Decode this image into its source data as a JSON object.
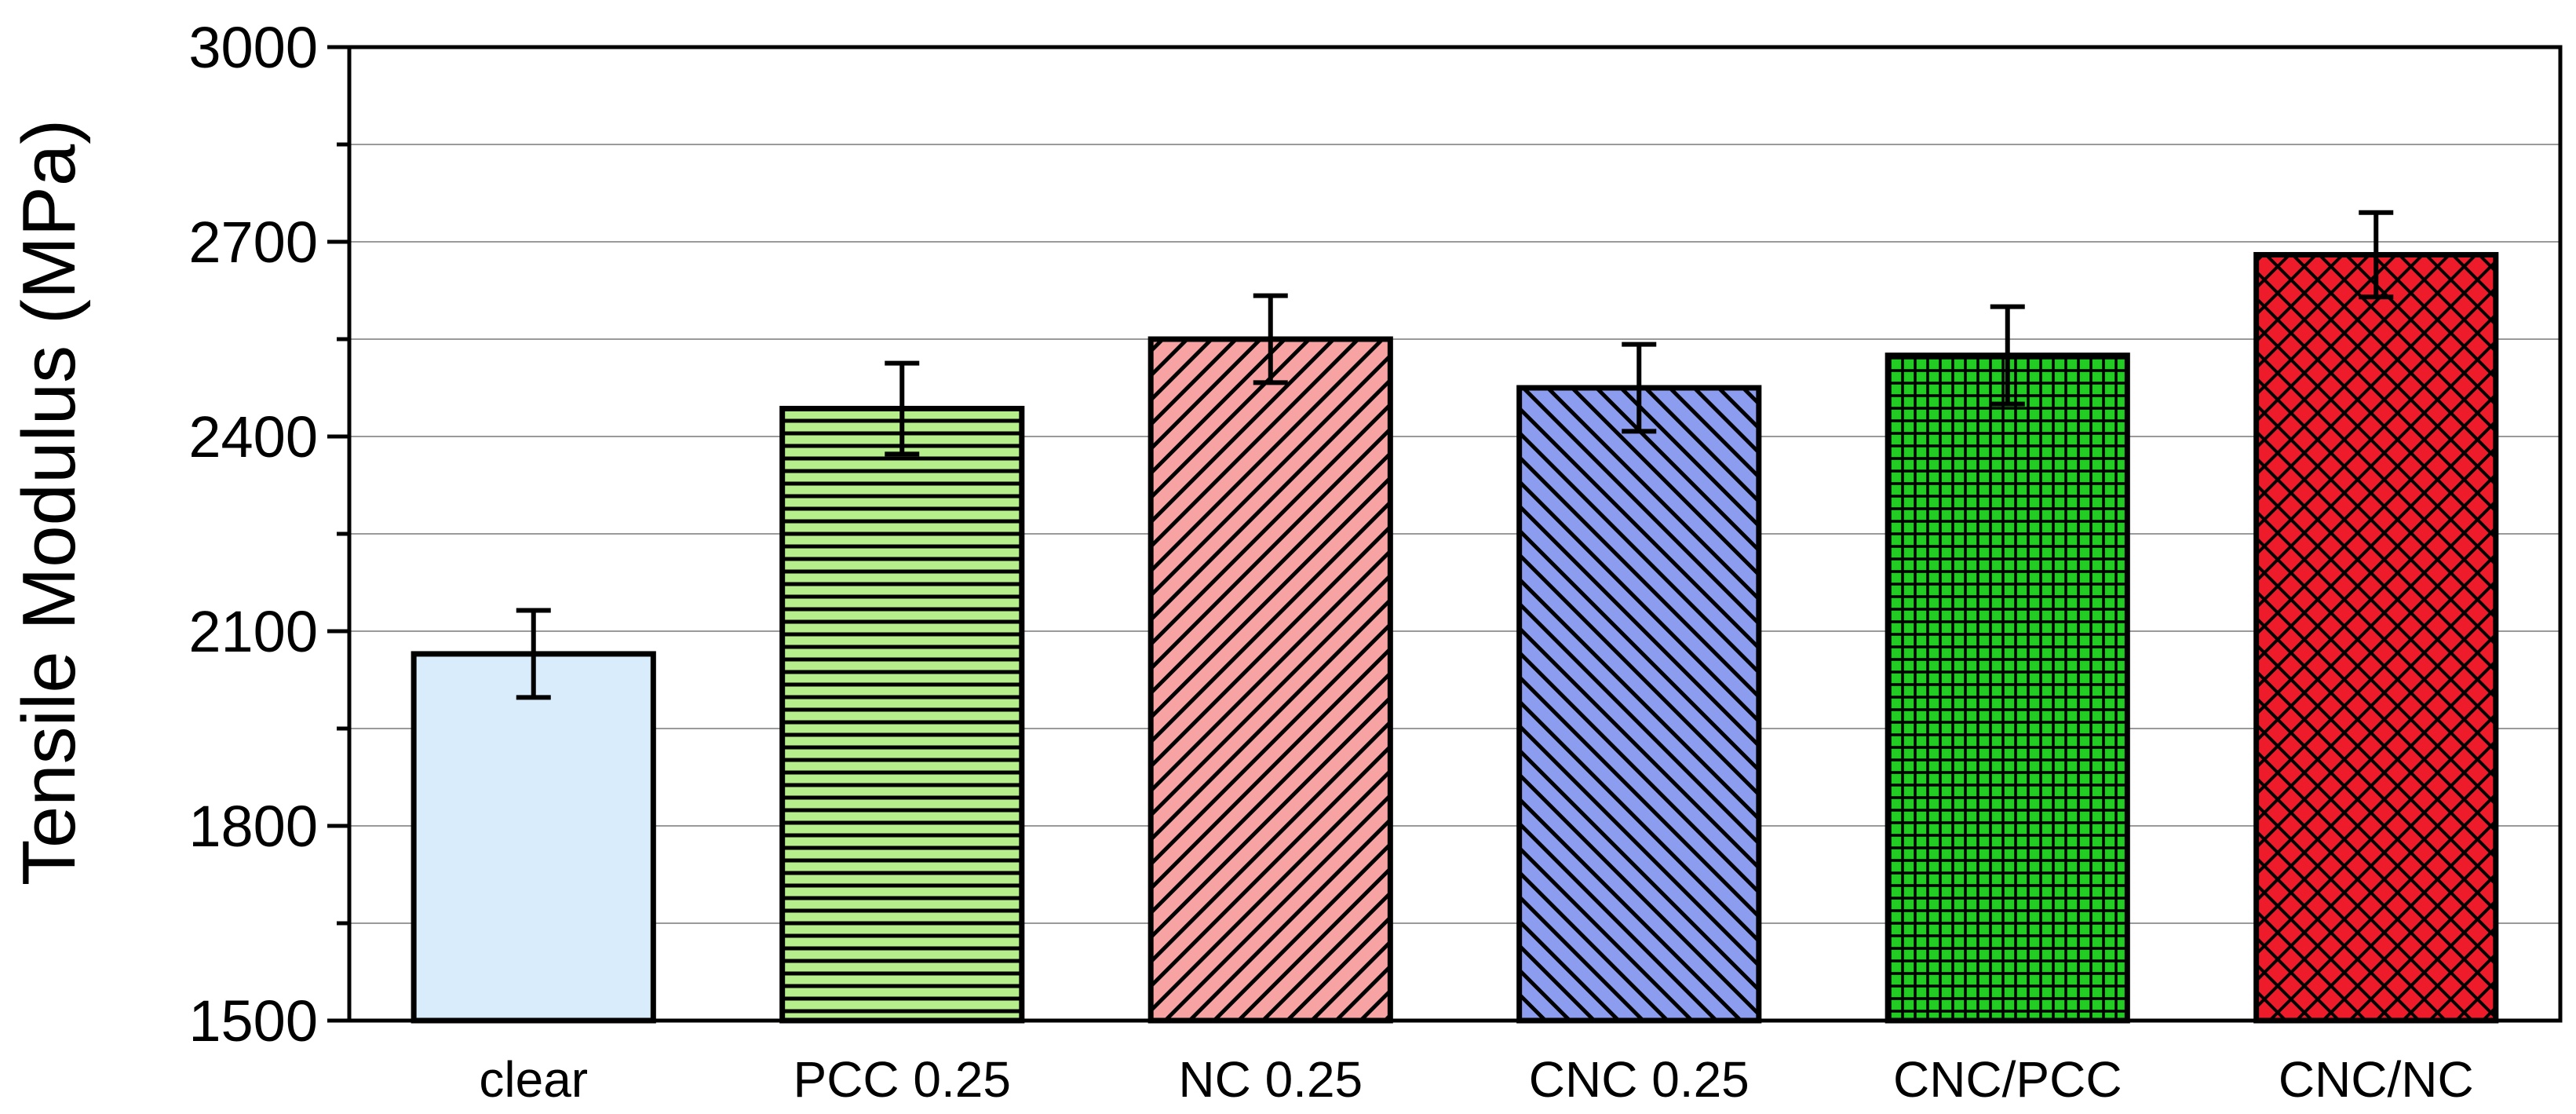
{
  "chart_data": {
    "type": "bar",
    "title": "",
    "xlabel": "",
    "ylabel": "Tensile Modulus (MPa)",
    "ylim": [
      1500,
      3000
    ],
    "yticks": [
      1500,
      1800,
      2100,
      2400,
      2700,
      3000
    ],
    "ytick_labels": [
      "1500",
      "1800",
      "2100",
      "2400",
      "2700",
      "3000"
    ],
    "minor_tick_step": 150,
    "grid": "horizontal",
    "categories": [
      "clear",
      "PCC 0.25",
      "NC 0.25",
      "CNC 0.25",
      "CNC/PCC",
      "CNC/NC"
    ],
    "values": [
      2065,
      2443,
      2550,
      2475,
      2525,
      2680
    ],
    "errors": [
      67,
      70,
      67,
      67,
      75,
      65
    ],
    "bar_styles": [
      {
        "fill": "#d8ecfb",
        "pattern": "none"
      },
      {
        "fill": "#b5ee8a",
        "pattern": "horizontal-lines"
      },
      {
        "fill": "#f7a3a3",
        "pattern": "backward-diagonal"
      },
      {
        "fill": "#8c9df0",
        "pattern": "forward-diagonal"
      },
      {
        "fill": "#22cc22",
        "pattern": "grid"
      },
      {
        "fill": "#ee1c2a",
        "pattern": "crosshatch"
      }
    ]
  }
}
